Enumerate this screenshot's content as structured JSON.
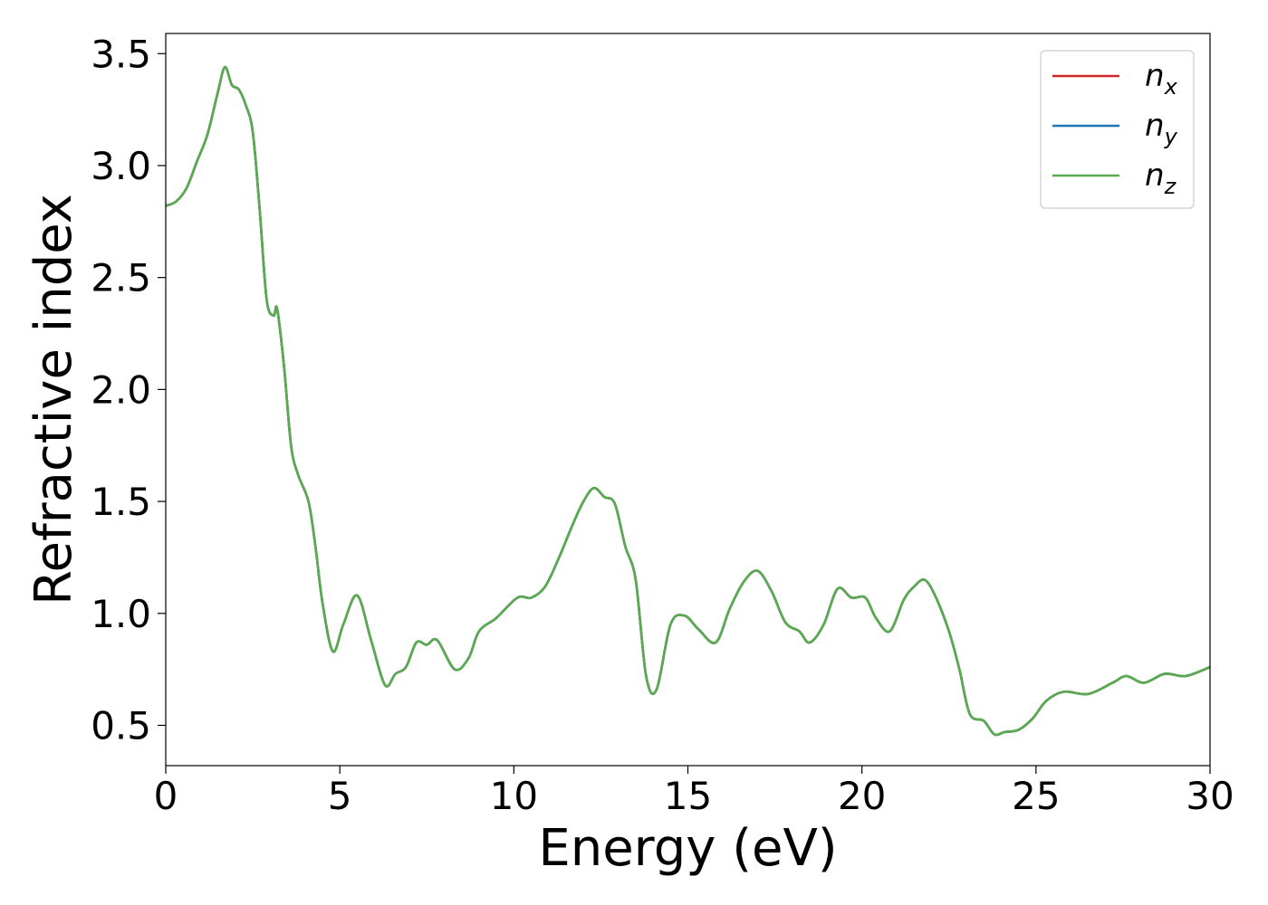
{
  "chart_data": {
    "type": "line",
    "xlabel": "Energy (eV)",
    "ylabel": "Refractive index",
    "xlim": [
      0,
      30
    ],
    "ylim": [
      0.32,
      3.59
    ],
    "xticks": [
      "0",
      "5",
      "10",
      "15",
      "20",
      "25",
      "30"
    ],
    "yticks": [
      "0.5",
      "1.0",
      "1.5",
      "2.0",
      "2.5",
      "3.0",
      "3.5"
    ],
    "grid": false,
    "legend_position": "top-right",
    "series": [
      {
        "name": "n",
        "subscript": "x",
        "color": "#d62728",
        "points": [
          [
            0,
            2.82
          ],
          [
            0.3,
            2.84
          ],
          [
            0.6,
            2.9
          ],
          [
            0.9,
            3.02
          ],
          [
            1.2,
            3.14
          ],
          [
            1.5,
            3.33
          ],
          [
            1.7,
            3.44
          ],
          [
            1.9,
            3.36
          ],
          [
            2.1,
            3.34
          ],
          [
            2.3,
            3.27
          ],
          [
            2.5,
            3.15
          ],
          [
            2.7,
            2.8
          ],
          [
            2.9,
            2.4
          ],
          [
            3.1,
            2.33
          ],
          [
            3.2,
            2.36
          ],
          [
            3.4,
            2.1
          ],
          [
            3.6,
            1.75
          ],
          [
            3.8,
            1.62
          ],
          [
            4.1,
            1.5
          ],
          [
            4.3,
            1.3
          ],
          [
            4.5,
            1.05
          ],
          [
            4.8,
            0.83
          ],
          [
            5.1,
            0.95
          ],
          [
            5.5,
            1.08
          ],
          [
            5.9,
            0.88
          ],
          [
            6.3,
            0.68
          ],
          [
            6.6,
            0.73
          ],
          [
            6.9,
            0.76
          ],
          [
            7.2,
            0.87
          ],
          [
            7.5,
            0.86
          ],
          [
            7.8,
            0.88
          ],
          [
            8.3,
            0.75
          ],
          [
            8.7,
            0.8
          ],
          [
            9.0,
            0.92
          ],
          [
            9.5,
            0.98
          ],
          [
            10.1,
            1.07
          ],
          [
            10.5,
            1.07
          ],
          [
            10.9,
            1.12
          ],
          [
            11.3,
            1.25
          ],
          [
            11.7,
            1.4
          ],
          [
            12.0,
            1.5
          ],
          [
            12.3,
            1.56
          ],
          [
            12.6,
            1.52
          ],
          [
            12.9,
            1.49
          ],
          [
            13.2,
            1.3
          ],
          [
            13.5,
            1.15
          ],
          [
            13.8,
            0.72
          ],
          [
            14.1,
            0.66
          ],
          [
            14.5,
            0.95
          ],
          [
            14.9,
            0.99
          ],
          [
            15.3,
            0.93
          ],
          [
            15.8,
            0.87
          ],
          [
            16.2,
            1.02
          ],
          [
            16.6,
            1.14
          ],
          [
            17.0,
            1.19
          ],
          [
            17.4,
            1.1
          ],
          [
            17.8,
            0.96
          ],
          [
            18.2,
            0.92
          ],
          [
            18.5,
            0.87
          ],
          [
            18.9,
            0.95
          ],
          [
            19.3,
            1.11
          ],
          [
            19.7,
            1.07
          ],
          [
            20.1,
            1.07
          ],
          [
            20.4,
            0.98
          ],
          [
            20.8,
            0.92
          ],
          [
            21.2,
            1.06
          ],
          [
            21.5,
            1.12
          ],
          [
            21.8,
            1.15
          ],
          [
            22.1,
            1.08
          ],
          [
            22.5,
            0.92
          ],
          [
            22.8,
            0.75
          ],
          [
            23.1,
            0.55
          ],
          [
            23.5,
            0.52
          ],
          [
            23.8,
            0.46
          ],
          [
            24.1,
            0.47
          ],
          [
            24.5,
            0.48
          ],
          [
            24.9,
            0.53
          ],
          [
            25.3,
            0.61
          ],
          [
            25.8,
            0.65
          ],
          [
            26.5,
            0.64
          ],
          [
            27.2,
            0.69
          ],
          [
            27.6,
            0.72
          ],
          [
            28.1,
            0.69
          ],
          [
            28.7,
            0.73
          ],
          [
            29.3,
            0.72
          ],
          [
            30.0,
            0.76
          ]
        ]
      },
      {
        "name": "n",
        "subscript": "y",
        "color": "#1f77b4",
        "points": [
          [
            0,
            2.82
          ],
          [
            0.3,
            2.84
          ],
          [
            0.6,
            2.9
          ],
          [
            0.9,
            3.02
          ],
          [
            1.2,
            3.14
          ],
          [
            1.5,
            3.33
          ],
          [
            1.7,
            3.44
          ],
          [
            1.9,
            3.36
          ],
          [
            2.1,
            3.34
          ],
          [
            2.3,
            3.27
          ],
          [
            2.5,
            3.15
          ],
          [
            2.7,
            2.8
          ],
          [
            2.9,
            2.4
          ],
          [
            3.1,
            2.33
          ],
          [
            3.2,
            2.36
          ],
          [
            3.4,
            2.1
          ],
          [
            3.6,
            1.75
          ],
          [
            3.8,
            1.62
          ],
          [
            4.1,
            1.5
          ],
          [
            4.3,
            1.3
          ],
          [
            4.5,
            1.05
          ],
          [
            4.8,
            0.83
          ],
          [
            5.1,
            0.95
          ],
          [
            5.5,
            1.08
          ],
          [
            5.9,
            0.88
          ],
          [
            6.3,
            0.68
          ],
          [
            6.6,
            0.73
          ],
          [
            6.9,
            0.76
          ],
          [
            7.2,
            0.87
          ],
          [
            7.5,
            0.86
          ],
          [
            7.8,
            0.88
          ],
          [
            8.3,
            0.75
          ],
          [
            8.7,
            0.8
          ],
          [
            9.0,
            0.92
          ],
          [
            9.5,
            0.98
          ],
          [
            10.1,
            1.07
          ],
          [
            10.5,
            1.07
          ],
          [
            10.9,
            1.12
          ],
          [
            11.3,
            1.25
          ],
          [
            11.7,
            1.4
          ],
          [
            12.0,
            1.5
          ],
          [
            12.3,
            1.56
          ],
          [
            12.6,
            1.52
          ],
          [
            12.9,
            1.49
          ],
          [
            13.2,
            1.3
          ],
          [
            13.5,
            1.15
          ],
          [
            13.8,
            0.72
          ],
          [
            14.1,
            0.66
          ],
          [
            14.5,
            0.95
          ],
          [
            14.9,
            0.99
          ],
          [
            15.3,
            0.93
          ],
          [
            15.8,
            0.87
          ],
          [
            16.2,
            1.02
          ],
          [
            16.6,
            1.14
          ],
          [
            17.0,
            1.19
          ],
          [
            17.4,
            1.1
          ],
          [
            17.8,
            0.96
          ],
          [
            18.2,
            0.92
          ],
          [
            18.5,
            0.87
          ],
          [
            18.9,
            0.95
          ],
          [
            19.3,
            1.11
          ],
          [
            19.7,
            1.07
          ],
          [
            20.1,
            1.07
          ],
          [
            20.4,
            0.98
          ],
          [
            20.8,
            0.92
          ],
          [
            21.2,
            1.06
          ],
          [
            21.5,
            1.12
          ],
          [
            21.8,
            1.15
          ],
          [
            22.1,
            1.08
          ],
          [
            22.5,
            0.92
          ],
          [
            22.8,
            0.75
          ],
          [
            23.1,
            0.55
          ],
          [
            23.5,
            0.52
          ],
          [
            23.8,
            0.46
          ],
          [
            24.1,
            0.47
          ],
          [
            24.5,
            0.48
          ],
          [
            24.9,
            0.53
          ],
          [
            25.3,
            0.61
          ],
          [
            25.8,
            0.65
          ],
          [
            26.5,
            0.64
          ],
          [
            27.2,
            0.69
          ],
          [
            27.6,
            0.72
          ],
          [
            28.1,
            0.69
          ],
          [
            28.7,
            0.73
          ],
          [
            29.3,
            0.72
          ],
          [
            30.0,
            0.76
          ]
        ]
      },
      {
        "name": "n",
        "subscript": "z",
        "color": "#5aab4f",
        "points": [
          [
            0,
            2.82
          ],
          [
            0.3,
            2.84
          ],
          [
            0.6,
            2.9
          ],
          [
            0.9,
            3.02
          ],
          [
            1.2,
            3.14
          ],
          [
            1.5,
            3.33
          ],
          [
            1.7,
            3.44
          ],
          [
            1.9,
            3.36
          ],
          [
            2.1,
            3.34
          ],
          [
            2.3,
            3.27
          ],
          [
            2.5,
            3.15
          ],
          [
            2.7,
            2.8
          ],
          [
            2.9,
            2.4
          ],
          [
            3.1,
            2.33
          ],
          [
            3.2,
            2.36
          ],
          [
            3.4,
            2.1
          ],
          [
            3.6,
            1.75
          ],
          [
            3.8,
            1.62
          ],
          [
            4.1,
            1.5
          ],
          [
            4.3,
            1.3
          ],
          [
            4.5,
            1.05
          ],
          [
            4.8,
            0.83
          ],
          [
            5.1,
            0.95
          ],
          [
            5.5,
            1.08
          ],
          [
            5.9,
            0.88
          ],
          [
            6.3,
            0.68
          ],
          [
            6.6,
            0.73
          ],
          [
            6.9,
            0.76
          ],
          [
            7.2,
            0.87
          ],
          [
            7.5,
            0.86
          ],
          [
            7.8,
            0.88
          ],
          [
            8.3,
            0.75
          ],
          [
            8.7,
            0.8
          ],
          [
            9.0,
            0.92
          ],
          [
            9.5,
            0.98
          ],
          [
            10.1,
            1.07
          ],
          [
            10.5,
            1.07
          ],
          [
            10.9,
            1.12
          ],
          [
            11.3,
            1.25
          ],
          [
            11.7,
            1.4
          ],
          [
            12.0,
            1.5
          ],
          [
            12.3,
            1.56
          ],
          [
            12.6,
            1.52
          ],
          [
            12.9,
            1.49
          ],
          [
            13.2,
            1.3
          ],
          [
            13.5,
            1.15
          ],
          [
            13.8,
            0.72
          ],
          [
            14.1,
            0.66
          ],
          [
            14.5,
            0.95
          ],
          [
            14.9,
            0.99
          ],
          [
            15.3,
            0.93
          ],
          [
            15.8,
            0.87
          ],
          [
            16.2,
            1.02
          ],
          [
            16.6,
            1.14
          ],
          [
            17.0,
            1.19
          ],
          [
            17.4,
            1.1
          ],
          [
            17.8,
            0.96
          ],
          [
            18.2,
            0.92
          ],
          [
            18.5,
            0.87
          ],
          [
            18.9,
            0.95
          ],
          [
            19.3,
            1.11
          ],
          [
            19.7,
            1.07
          ],
          [
            20.1,
            1.07
          ],
          [
            20.4,
            0.98
          ],
          [
            20.8,
            0.92
          ],
          [
            21.2,
            1.06
          ],
          [
            21.5,
            1.12
          ],
          [
            21.8,
            1.15
          ],
          [
            22.1,
            1.08
          ],
          [
            22.5,
            0.92
          ],
          [
            22.8,
            0.75
          ],
          [
            23.1,
            0.55
          ],
          [
            23.5,
            0.52
          ],
          [
            23.8,
            0.46
          ],
          [
            24.1,
            0.47
          ],
          [
            24.5,
            0.48
          ],
          [
            24.9,
            0.53
          ],
          [
            25.3,
            0.61
          ],
          [
            25.8,
            0.65
          ],
          [
            26.5,
            0.64
          ],
          [
            27.2,
            0.69
          ],
          [
            27.6,
            0.72
          ],
          [
            28.1,
            0.69
          ],
          [
            28.7,
            0.73
          ],
          [
            29.3,
            0.72
          ],
          [
            30.0,
            0.76
          ]
        ]
      }
    ]
  }
}
